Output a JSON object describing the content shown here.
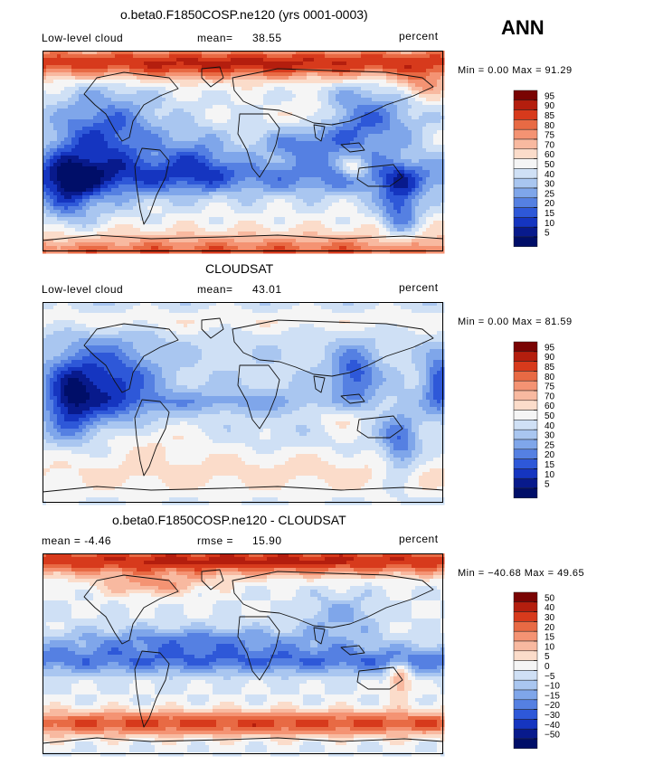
{
  "season_label": "ANN",
  "chart_data": [
    {
      "type": "heatmap",
      "title": "o.beta0.F1850COSP.ne120 (yrs 0001-0003)",
      "left_label": "Low-level cloud",
      "stat_label": "mean=",
      "stat_value": "38.55",
      "units": "percent",
      "min_text": "Min =    0.00 Max =   91.29",
      "min": 0.0,
      "max": 91.29,
      "pattern": "model",
      "colorbar": {
        "levels": [
          "95",
          "90",
          "85",
          "80",
          "75",
          "70",
          "60",
          "50",
          "40",
          "30",
          "25",
          "20",
          "15",
          "10",
          "5"
        ],
        "colors": [
          "#7a0403",
          "#b41e0e",
          "#d73a1c",
          "#e86a44",
          "#f49373",
          "#f8b9a0",
          "#fbdcca",
          "#f5f5f5",
          "#cfe0f5",
          "#a9c6f0",
          "#7fa6ea",
          "#5580e2",
          "#2e58d8",
          "#1535c0",
          "#081a8c",
          "#000e68"
        ]
      }
    },
    {
      "type": "heatmap",
      "title": "CLOUDSAT",
      "left_label": "Low-level cloud",
      "stat_label": "mean=",
      "stat_value": "43.01",
      "units": "percent",
      "min_text": "Min =    0.00 Max =   81.59",
      "min": 0.0,
      "max": 81.59,
      "pattern": "obs",
      "colorbar": {
        "levels": [
          "95",
          "90",
          "85",
          "80",
          "75",
          "70",
          "60",
          "50",
          "40",
          "30",
          "25",
          "20",
          "15",
          "10",
          "5"
        ],
        "colors": [
          "#7a0403",
          "#b41e0e",
          "#d73a1c",
          "#e86a44",
          "#f49373",
          "#f8b9a0",
          "#fbdcca",
          "#f5f5f5",
          "#cfe0f5",
          "#a9c6f0",
          "#7fa6ea",
          "#5580e2",
          "#2e58d8",
          "#1535c0",
          "#081a8c",
          "#000e68"
        ]
      }
    },
    {
      "type": "heatmap",
      "title": "o.beta0.F1850COSP.ne120 - CLOUDSAT",
      "left_label": "mean =    -4.46",
      "stat_label": "rmse =",
      "stat_value": "15.90",
      "units": "percent",
      "min_text": "Min = −40.68 Max =   49.65",
      "min": -40.68,
      "max": 49.65,
      "pattern": "diff",
      "colorbar": {
        "levels": [
          "50",
          "40",
          "30",
          "20",
          "15",
          "10",
          "5",
          "0",
          "−5",
          "−10",
          "−15",
          "−20",
          "−30",
          "−40",
          "−50"
        ],
        "colors": [
          "#7a0403",
          "#b41e0e",
          "#d73a1c",
          "#e86a44",
          "#f49373",
          "#f8b9a0",
          "#fbdcca",
          "#f5f5f5",
          "#cfe0f5",
          "#a9c6f0",
          "#7fa6ea",
          "#5580e2",
          "#2e58d8",
          "#1535c0",
          "#081a8c",
          "#000e68"
        ]
      }
    }
  ]
}
